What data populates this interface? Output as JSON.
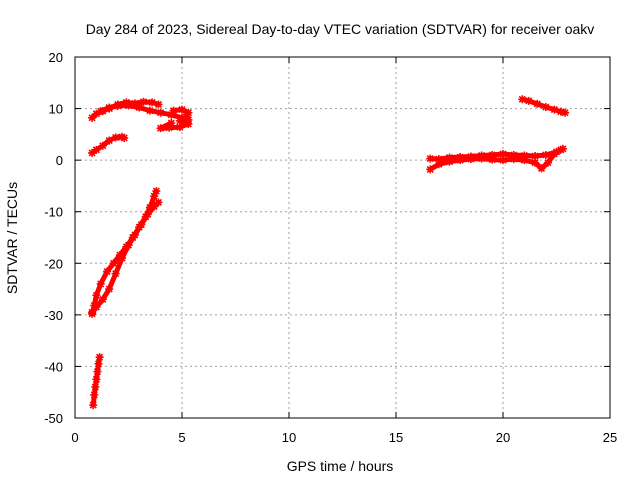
{
  "chart_data": {
    "type": "scatter",
    "title": "Day 284 of 2023, Sidereal Day-to-day VTEC variation (SDTVAR) for receiver oakv",
    "xlabel": "GPS time / hours",
    "ylabel": "SDTVAR / TECUs",
    "xlim": [
      0,
      25
    ],
    "ylim": [
      -50,
      20
    ],
    "xticks": [
      "0",
      "5",
      "10",
      "15",
      "20",
      "25"
    ],
    "yticks": [
      "20",
      "10",
      "0",
      "-10",
      "-20",
      "-30",
      "-40",
      "-50"
    ],
    "grid": true,
    "marker_color": "#ff0000",
    "series": [
      {
        "points": [
          {
            "x": 0.8,
            "y": 8.2
          },
          {
            "x": 1.0,
            "y": 9.0
          },
          {
            "x": 1.3,
            "y": 9.5
          },
          {
            "x": 1.6,
            "y": 10.0
          },
          {
            "x": 2.0,
            "y": 10.8
          },
          {
            "x": 2.4,
            "y": 11.2
          },
          {
            "x": 2.8,
            "y": 11.0
          },
          {
            "x": 3.2,
            "y": 11.3
          },
          {
            "x": 3.6,
            "y": 11.2
          },
          {
            "x": 3.9,
            "y": 10.8
          }
        ]
      },
      {
        "points": [
          {
            "x": 1.2,
            "y": 9.5
          },
          {
            "x": 1.6,
            "y": 10.2
          },
          {
            "x": 2.0,
            "y": 10.5
          },
          {
            "x": 2.5,
            "y": 10.6
          },
          {
            "x": 3.0,
            "y": 10.2
          },
          {
            "x": 3.5,
            "y": 9.6
          },
          {
            "x": 4.0,
            "y": 9.2
          },
          {
            "x": 4.5,
            "y": 8.8
          },
          {
            "x": 5.0,
            "y": 8.2
          },
          {
            "x": 5.3,
            "y": 7.8
          }
        ]
      },
      {
        "points": [
          {
            "x": 4.6,
            "y": 9.6
          },
          {
            "x": 5.0,
            "y": 9.8
          },
          {
            "x": 5.3,
            "y": 9.2
          },
          {
            "x": 5.2,
            "y": 8.4
          },
          {
            "x": 4.9,
            "y": 7.6
          },
          {
            "x": 5.3,
            "y": 7.0
          },
          {
            "x": 4.9,
            "y": 6.4
          },
          {
            "x": 4.4,
            "y": 6.3
          },
          {
            "x": 4.0,
            "y": 6.2
          },
          {
            "x": 4.5,
            "y": 7.2
          }
        ]
      },
      {
        "points": [
          {
            "x": 0.8,
            "y": 1.4
          },
          {
            "x": 1.0,
            "y": 2.0
          },
          {
            "x": 1.3,
            "y": 2.8
          },
          {
            "x": 1.6,
            "y": 3.8
          },
          {
            "x": 1.9,
            "y": 4.4
          },
          {
            "x": 2.2,
            "y": 4.5
          },
          {
            "x": 2.3,
            "y": 4.3
          }
        ]
      },
      {
        "points": [
          {
            "x": 0.8,
            "y": -29.8
          },
          {
            "x": 0.9,
            "y": -28.2
          },
          {
            "x": 1.0,
            "y": -26.2
          },
          {
            "x": 1.2,
            "y": -24.0
          },
          {
            "x": 1.5,
            "y": -21.6
          },
          {
            "x": 1.8,
            "y": -20.0
          },
          {
            "x": 2.1,
            "y": -18.4
          },
          {
            "x": 2.4,
            "y": -16.8
          },
          {
            "x": 2.7,
            "y": -15.0
          },
          {
            "x": 3.0,
            "y": -13.0
          },
          {
            "x": 3.3,
            "y": -11.0
          },
          {
            "x": 3.5,
            "y": -9.2
          },
          {
            "x": 3.7,
            "y": -7.0
          },
          {
            "x": 3.8,
            "y": -6.0
          }
        ]
      },
      {
        "points": [
          {
            "x": 0.8,
            "y": -29.5
          },
          {
            "x": 1.0,
            "y": -28.5
          },
          {
            "x": 1.3,
            "y": -27.0
          },
          {
            "x": 1.6,
            "y": -25.0
          },
          {
            "x": 1.9,
            "y": -22.0
          },
          {
            "x": 2.2,
            "y": -19.0
          },
          {
            "x": 2.5,
            "y": -16.5
          },
          {
            "x": 2.8,
            "y": -14.5
          },
          {
            "x": 3.1,
            "y": -12.5
          },
          {
            "x": 3.4,
            "y": -10.5
          },
          {
            "x": 3.7,
            "y": -9.0
          },
          {
            "x": 3.9,
            "y": -8.2
          }
        ]
      },
      {
        "points": [
          {
            "x": 0.85,
            "y": -47.5
          },
          {
            "x": 0.9,
            "y": -45.5
          },
          {
            "x": 0.95,
            "y": -44.0
          },
          {
            "x": 1.0,
            "y": -42.5
          },
          {
            "x": 1.05,
            "y": -41.0
          },
          {
            "x": 1.1,
            "y": -39.5
          },
          {
            "x": 1.15,
            "y": -38.2
          }
        ]
      },
      {
        "points": [
          {
            "x": 16.6,
            "y": 0.3
          },
          {
            "x": 17.0,
            "y": 0.2
          },
          {
            "x": 17.5,
            "y": 0.5
          },
          {
            "x": 18.0,
            "y": 0.6
          },
          {
            "x": 18.5,
            "y": 0.7
          },
          {
            "x": 19.0,
            "y": 0.9
          },
          {
            "x": 19.5,
            "y": 1.0
          },
          {
            "x": 20.0,
            "y": 1.2
          },
          {
            "x": 20.5,
            "y": 1.0
          },
          {
            "x": 21.0,
            "y": 0.9
          },
          {
            "x": 21.5,
            "y": 0.8
          },
          {
            "x": 22.0,
            "y": 1.0
          },
          {
            "x": 22.5,
            "y": 1.6
          },
          {
            "x": 22.8,
            "y": 2.2
          }
        ]
      },
      {
        "points": [
          {
            "x": 16.6,
            "y": -1.8
          },
          {
            "x": 17.0,
            "y": -0.8
          },
          {
            "x": 17.5,
            "y": -0.3
          },
          {
            "x": 18.0,
            "y": 0.0
          },
          {
            "x": 18.5,
            "y": 0.2
          },
          {
            "x": 19.0,
            "y": 0.3
          },
          {
            "x": 19.5,
            "y": 0.1
          },
          {
            "x": 20.0,
            "y": 0.0
          },
          {
            "x": 20.5,
            "y": 0.2
          },
          {
            "x": 21.0,
            "y": 0.0
          },
          {
            "x": 21.5,
            "y": -0.5
          },
          {
            "x": 21.8,
            "y": -1.6
          },
          {
            "x": 22.1,
            "y": -0.5
          },
          {
            "x": 22.4,
            "y": 1.2
          },
          {
            "x": 22.7,
            "y": 2.0
          }
        ]
      },
      {
        "points": [
          {
            "x": 20.9,
            "y": 11.8
          },
          {
            "x": 21.2,
            "y": 11.5
          },
          {
            "x": 21.6,
            "y": 10.9
          },
          {
            "x": 22.0,
            "y": 10.3
          },
          {
            "x": 22.4,
            "y": 9.8
          },
          {
            "x": 22.7,
            "y": 9.4
          },
          {
            "x": 22.9,
            "y": 9.2
          }
        ]
      }
    ]
  }
}
